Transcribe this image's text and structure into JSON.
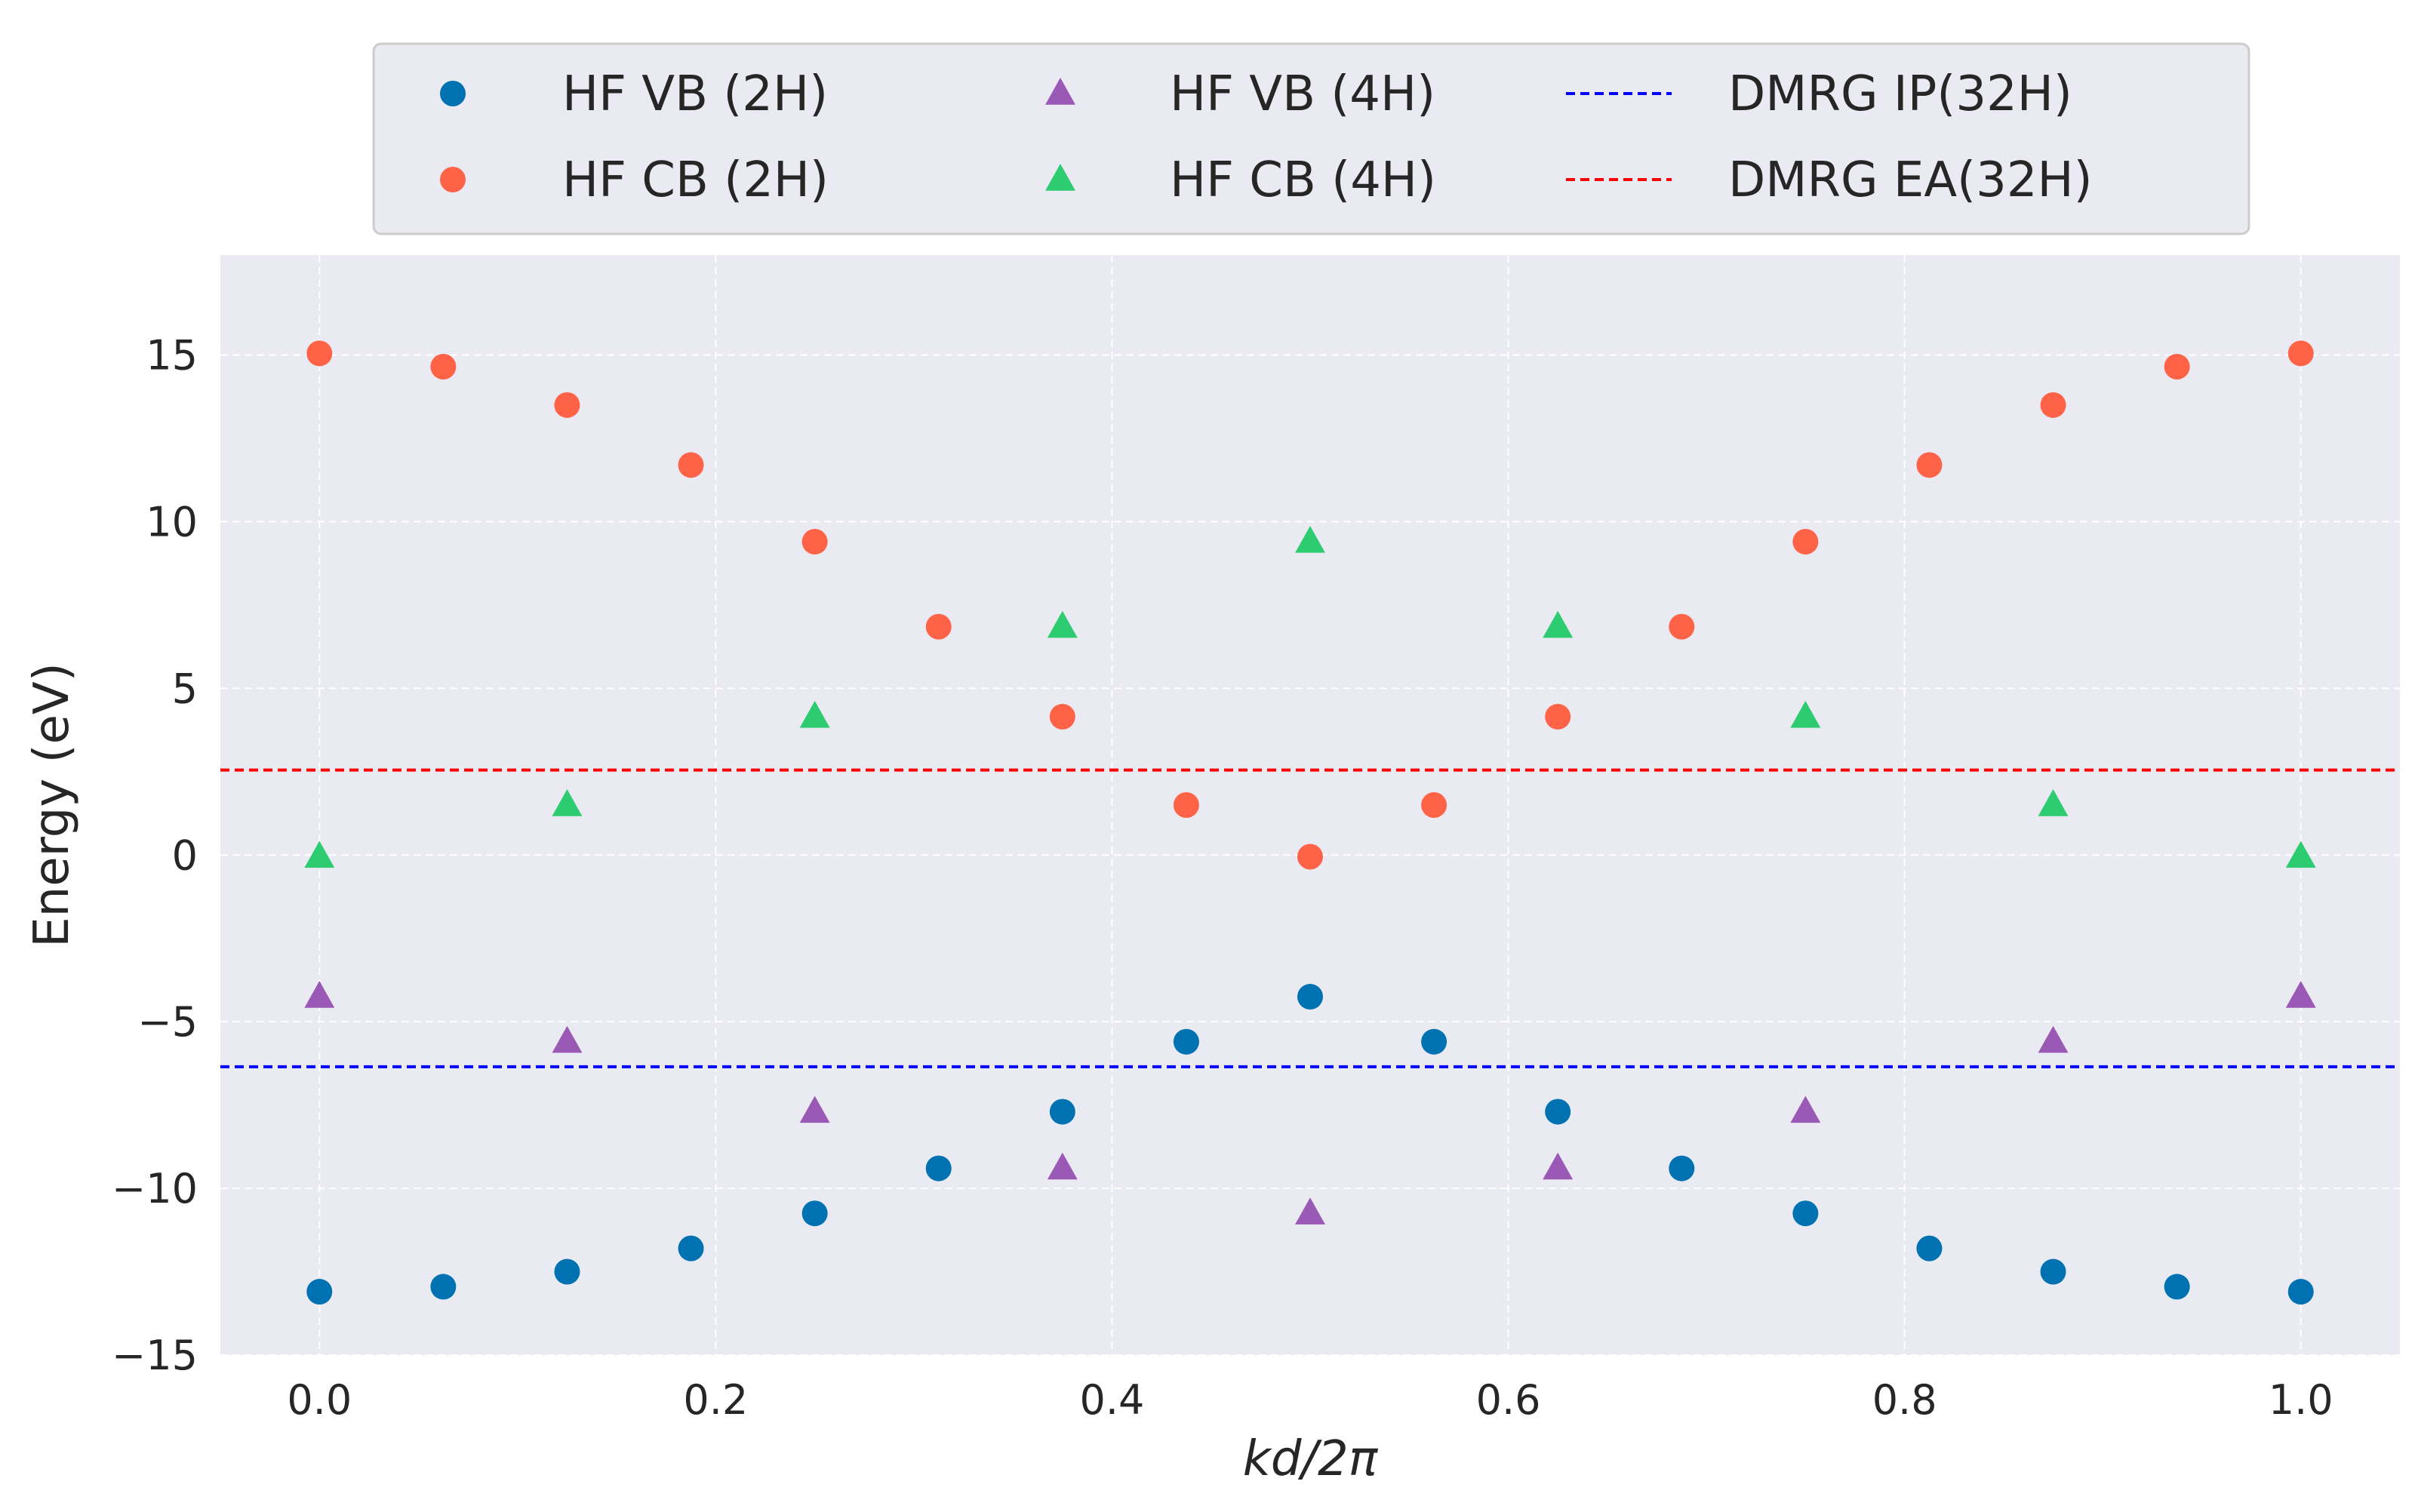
{
  "chart_data": {
    "type": "scatter",
    "xlabel": "kd/2π",
    "ylabel": "Energy (eV)",
    "xlim": [
      -0.05,
      1.05
    ],
    "ylim": [
      -15,
      18
    ],
    "x_ticks": [
      0.0,
      0.2,
      0.4,
      0.6,
      0.8,
      1.0
    ],
    "x_tick_labels": [
      "0.0",
      "0.2",
      "0.4",
      "0.6",
      "0.8",
      "1.0"
    ],
    "y_ticks": [
      -15,
      -10,
      -5,
      0,
      5,
      10,
      15
    ],
    "y_tick_labels": [
      "−15",
      "−10",
      "−5",
      "0",
      "5",
      "10",
      "15"
    ],
    "grid": true,
    "grid_style": "dashed",
    "background": "#eaeaf2",
    "legend_position": "top-center",
    "legend_columns": 3,
    "series": [
      {
        "name": "HF VB (2H)",
        "marker": "circle",
        "color": "#0072b2",
        "x": [
          0.0,
          0.0625,
          0.125,
          0.1875,
          0.25,
          0.3125,
          0.375,
          0.4375,
          0.5,
          0.5625,
          0.625,
          0.6875,
          0.75,
          0.8125,
          0.875,
          0.9375,
          1.0
        ],
        "y": [
          -13.1,
          -12.95,
          -12.5,
          -11.8,
          -10.75,
          -9.4,
          -7.7,
          -5.6,
          -4.25,
          -5.6,
          -7.7,
          -9.4,
          -10.75,
          -11.8,
          -12.5,
          -12.95,
          -13.1
        ]
      },
      {
        "name": "HF CB (2H)",
        "marker": "circle",
        "color": "#ff6347",
        "x": [
          0.0,
          0.0625,
          0.125,
          0.1875,
          0.25,
          0.3125,
          0.375,
          0.4375,
          0.5,
          0.5625,
          0.625,
          0.6875,
          0.75,
          0.8125,
          0.875,
          0.9375,
          1.0
        ],
        "y": [
          15.05,
          14.65,
          13.5,
          11.7,
          9.4,
          6.85,
          4.15,
          1.5,
          -0.05,
          1.5,
          4.15,
          6.85,
          9.4,
          11.7,
          13.5,
          14.65,
          15.05
        ]
      },
      {
        "name": "HF VB (4H)",
        "marker": "triangle",
        "color": "#9b59b6",
        "x": [
          0.0,
          0.125,
          0.25,
          0.375,
          0.5,
          0.625,
          0.75,
          0.875,
          1.0
        ],
        "y": [
          -4.25,
          -5.6,
          -7.7,
          -9.4,
          -10.75,
          -9.4,
          -7.7,
          -5.6,
          -4.25
        ]
      },
      {
        "name": "HF CB (4H)",
        "marker": "triangle",
        "color": "#2ecc71",
        "x": [
          0.0,
          0.125,
          0.25,
          0.375,
          0.5,
          0.625,
          0.75,
          0.875,
          1.0
        ],
        "y": [
          -0.05,
          1.5,
          4.15,
          6.85,
          9.4,
          6.85,
          4.15,
          1.5,
          -0.05
        ]
      }
    ],
    "reference_lines": [
      {
        "name": "DMRG IP(32H)",
        "y": -6.35,
        "color": "#0000ff",
        "style": "dashed"
      },
      {
        "name": "DMRG EA(32H)",
        "y": 2.55,
        "color": "#ff0000",
        "style": "dashed"
      }
    ],
    "legend_entries": [
      {
        "label": "HF VB (2H)",
        "kind": "circle",
        "color": "#0072b2"
      },
      {
        "label": "HF CB (2H)",
        "kind": "circle",
        "color": "#ff6347"
      },
      {
        "label": "HF VB (4H)",
        "kind": "triangle",
        "color": "#9b59b6"
      },
      {
        "label": "HF CB (4H)",
        "kind": "triangle",
        "color": "#2ecc71"
      },
      {
        "label": "DMRG IP(32H)",
        "kind": "dashed-line",
        "color": "#0000ff"
      },
      {
        "label": "DMRG EA(32H)",
        "kind": "dashed-line",
        "color": "#ff0000"
      }
    ]
  }
}
